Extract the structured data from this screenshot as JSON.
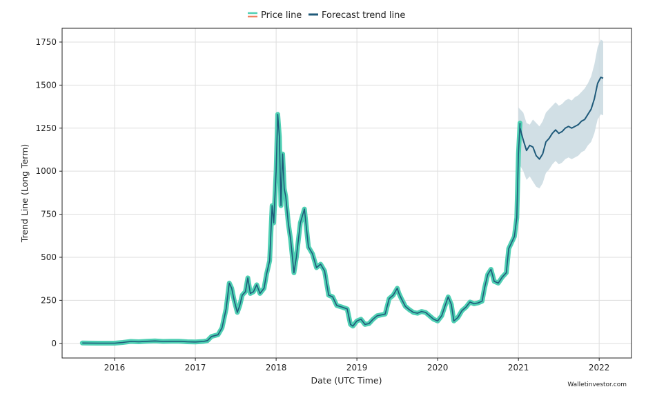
{
  "chart_data": {
    "type": "line",
    "xlabel": "Date (UTC Time)",
    "ylabel": "Trend Line (Long Term)",
    "xlim": [
      2015.35,
      2022.4
    ],
    "ylim": [
      -85,
      1830
    ],
    "x_ticks": [
      2016,
      2017,
      2018,
      2019,
      2020,
      2021,
      2022
    ],
    "x_tick_labels": [
      "2016",
      "2017",
      "2018",
      "2019",
      "2020",
      "2021",
      "2022"
    ],
    "y_ticks": [
      0,
      250,
      500,
      750,
      1000,
      1250,
      1500,
      1750
    ],
    "y_tick_labels": [
      "0",
      "250",
      "500",
      "750",
      "1000",
      "1250",
      "1500",
      "1750"
    ],
    "grid": true,
    "legend_position": "top-center",
    "series": [
      {
        "name": "Price line",
        "color": "#4fcfb3",
        "legend_color": "#f08060",
        "points": [
          [
            2015.6,
            2
          ],
          [
            2015.8,
            1
          ],
          [
            2016.0,
            1
          ],
          [
            2016.1,
            5
          ],
          [
            2016.2,
            11
          ],
          [
            2016.3,
            9
          ],
          [
            2016.4,
            12
          ],
          [
            2016.5,
            14
          ],
          [
            2016.6,
            11
          ],
          [
            2016.7,
            12
          ],
          [
            2016.8,
            12
          ],
          [
            2016.9,
            9
          ],
          [
            2017.0,
            8
          ],
          [
            2017.1,
            11
          ],
          [
            2017.15,
            16
          ],
          [
            2017.2,
            40
          ],
          [
            2017.28,
            50
          ],
          [
            2017.33,
            90
          ],
          [
            2017.38,
            200
          ],
          [
            2017.42,
            350
          ],
          [
            2017.45,
            320
          ],
          [
            2017.48,
            250
          ],
          [
            2017.52,
            180
          ],
          [
            2017.55,
            220
          ],
          [
            2017.58,
            280
          ],
          [
            2017.62,
            300
          ],
          [
            2017.65,
            380
          ],
          [
            2017.68,
            290
          ],
          [
            2017.72,
            300
          ],
          [
            2017.76,
            340
          ],
          [
            2017.8,
            290
          ],
          [
            2017.85,
            320
          ],
          [
            2017.88,
            400
          ],
          [
            2017.92,
            480
          ],
          [
            2017.95,
            800
          ],
          [
            2017.97,
            700
          ],
          [
            2018.0,
            1000
          ],
          [
            2018.02,
            1330
          ],
          [
            2018.04,
            1200
          ],
          [
            2018.06,
            800
          ],
          [
            2018.08,
            1100
          ],
          [
            2018.1,
            900
          ],
          [
            2018.12,
            850
          ],
          [
            2018.15,
            700
          ],
          [
            2018.18,
            600
          ],
          [
            2018.22,
            410
          ],
          [
            2018.25,
            500
          ],
          [
            2018.3,
            700
          ],
          [
            2018.35,
            780
          ],
          [
            2018.4,
            560
          ],
          [
            2018.45,
            520
          ],
          [
            2018.5,
            440
          ],
          [
            2018.55,
            460
          ],
          [
            2018.6,
            420
          ],
          [
            2018.65,
            280
          ],
          [
            2018.7,
            270
          ],
          [
            2018.75,
            220
          ],
          [
            2018.82,
            210
          ],
          [
            2018.88,
            200
          ],
          [
            2018.92,
            110
          ],
          [
            2018.95,
            100
          ],
          [
            2019.0,
            130
          ],
          [
            2019.05,
            140
          ],
          [
            2019.1,
            110
          ],
          [
            2019.15,
            115
          ],
          [
            2019.2,
            140
          ],
          [
            2019.25,
            160
          ],
          [
            2019.3,
            165
          ],
          [
            2019.35,
            170
          ],
          [
            2019.4,
            260
          ],
          [
            2019.45,
            280
          ],
          [
            2019.5,
            320
          ],
          [
            2019.52,
            290
          ],
          [
            2019.55,
            260
          ],
          [
            2019.6,
            215
          ],
          [
            2019.65,
            195
          ],
          [
            2019.7,
            180
          ],
          [
            2019.75,
            175
          ],
          [
            2019.8,
            185
          ],
          [
            2019.85,
            180
          ],
          [
            2019.9,
            160
          ],
          [
            2019.95,
            140
          ],
          [
            2020.0,
            130
          ],
          [
            2020.05,
            160
          ],
          [
            2020.1,
            230
          ],
          [
            2020.13,
            270
          ],
          [
            2020.17,
            225
          ],
          [
            2020.2,
            130
          ],
          [
            2020.25,
            150
          ],
          [
            2020.3,
            190
          ],
          [
            2020.35,
            210
          ],
          [
            2020.4,
            240
          ],
          [
            2020.45,
            230
          ],
          [
            2020.5,
            235
          ],
          [
            2020.55,
            245
          ],
          [
            2020.58,
            320
          ],
          [
            2020.62,
            400
          ],
          [
            2020.66,
            430
          ],
          [
            2020.7,
            360
          ],
          [
            2020.75,
            350
          ],
          [
            2020.8,
            385
          ],
          [
            2020.85,
            410
          ],
          [
            2020.88,
            550
          ],
          [
            2020.92,
            590
          ],
          [
            2020.95,
            620
          ],
          [
            2020.98,
            730
          ],
          [
            2021.0,
            1100
          ],
          [
            2021.02,
            1280
          ]
        ]
      },
      {
        "name": "Forecast trend line",
        "color": "#1f5a7a",
        "band_color": "#c9d9e1",
        "points": [
          [
            2021.02,
            1250
          ],
          [
            2021.06,
            1180
          ],
          [
            2021.1,
            1120
          ],
          [
            2021.14,
            1150
          ],
          [
            2021.18,
            1140
          ],
          [
            2021.22,
            1090
          ],
          [
            2021.26,
            1070
          ],
          [
            2021.3,
            1100
          ],
          [
            2021.34,
            1170
          ],
          [
            2021.38,
            1190
          ],
          [
            2021.42,
            1220
          ],
          [
            2021.46,
            1240
          ],
          [
            2021.5,
            1220
          ],
          [
            2021.54,
            1230
          ],
          [
            2021.58,
            1250
          ],
          [
            2021.62,
            1260
          ],
          [
            2021.66,
            1250
          ],
          [
            2021.7,
            1260
          ],
          [
            2021.74,
            1270
          ],
          [
            2021.78,
            1290
          ],
          [
            2021.82,
            1300
          ],
          [
            2021.86,
            1330
          ],
          [
            2021.9,
            1360
          ],
          [
            2021.94,
            1420
          ],
          [
            2021.98,
            1510
          ],
          [
            2022.02,
            1545
          ],
          [
            2022.05,
            1540
          ]
        ],
        "band_upper": [
          [
            2021.0,
            1370
          ],
          [
            2021.06,
            1340
          ],
          [
            2021.1,
            1280
          ],
          [
            2021.14,
            1270
          ],
          [
            2021.18,
            1300
          ],
          [
            2021.22,
            1280
          ],
          [
            2021.26,
            1260
          ],
          [
            2021.3,
            1290
          ],
          [
            2021.34,
            1340
          ],
          [
            2021.38,
            1360
          ],
          [
            2021.42,
            1380
          ],
          [
            2021.46,
            1400
          ],
          [
            2021.5,
            1380
          ],
          [
            2021.54,
            1390
          ],
          [
            2021.58,
            1410
          ],
          [
            2021.62,
            1420
          ],
          [
            2021.66,
            1410
          ],
          [
            2021.7,
            1430
          ],
          [
            2021.74,
            1440
          ],
          [
            2021.78,
            1460
          ],
          [
            2021.82,
            1480
          ],
          [
            2021.86,
            1510
          ],
          [
            2021.9,
            1550
          ],
          [
            2021.94,
            1620
          ],
          [
            2021.98,
            1720
          ],
          [
            2022.02,
            1765
          ],
          [
            2022.05,
            1755
          ]
        ],
        "band_lower": [
          [
            2021.0,
            1050
          ],
          [
            2021.06,
            1000
          ],
          [
            2021.1,
            950
          ],
          [
            2021.14,
            970
          ],
          [
            2021.18,
            940
          ],
          [
            2021.22,
            910
          ],
          [
            2021.26,
            900
          ],
          [
            2021.3,
            930
          ],
          [
            2021.34,
            990
          ],
          [
            2021.38,
            1010
          ],
          [
            2021.42,
            1040
          ],
          [
            2021.46,
            1060
          ],
          [
            2021.5,
            1040
          ],
          [
            2021.54,
            1050
          ],
          [
            2021.58,
            1070
          ],
          [
            2021.62,
            1080
          ],
          [
            2021.66,
            1070
          ],
          [
            2021.7,
            1080
          ],
          [
            2021.74,
            1090
          ],
          [
            2021.78,
            1110
          ],
          [
            2021.82,
            1120
          ],
          [
            2021.86,
            1150
          ],
          [
            2021.9,
            1170
          ],
          [
            2021.94,
            1220
          ],
          [
            2021.98,
            1300
          ],
          [
            2022.02,
            1330
          ],
          [
            2022.05,
            1325
          ]
        ]
      }
    ],
    "watermark": "Walletinvestor.com"
  }
}
